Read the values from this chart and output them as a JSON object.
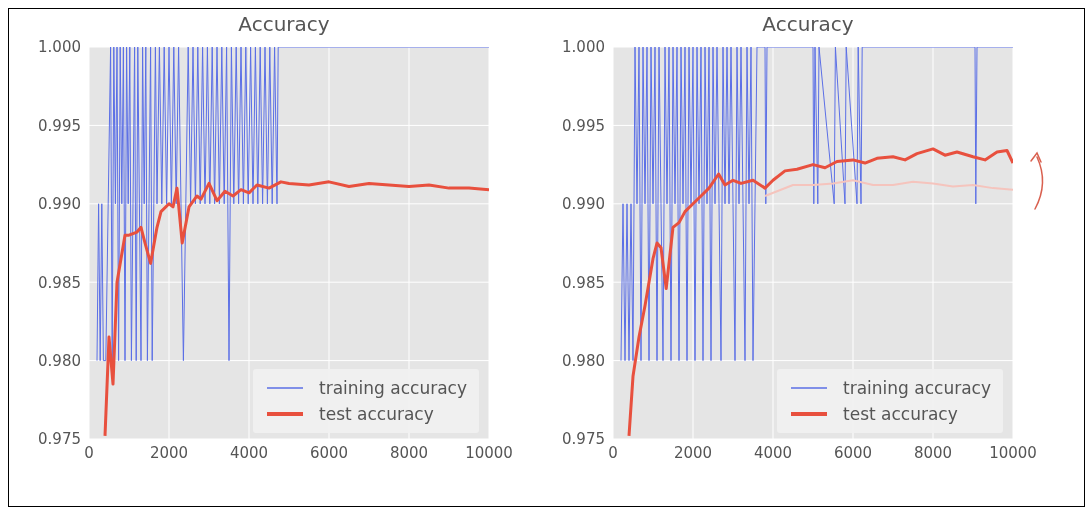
{
  "chart_data": [
    {
      "type": "line",
      "title": "Accuracy",
      "xlim": [
        0,
        10000
      ],
      "xticks": [
        0,
        2000,
        4000,
        6000,
        8000,
        10000
      ],
      "ylim": [
        0.975,
        1.0
      ],
      "yticks": [
        {
          "value": 0.975,
          "label": "0.975"
        },
        {
          "value": 0.98,
          "label": "0.980"
        },
        {
          "value": 0.985,
          "label": "0.985"
        },
        {
          "value": 0.99,
          "label": "0.990"
        },
        {
          "value": 0.995,
          "label": "0.995"
        },
        {
          "value": 1.0,
          "label": "1.000"
        }
      ],
      "grid": true,
      "legend": "bottom right",
      "marker": "none",
      "line_style": "solid",
      "series": [
        {
          "name": "training accuracy",
          "color": "#5b6fe6",
          "x": [
            200,
            240,
            280,
            320,
            360,
            420,
            480,
            540,
            580,
            620,
            660,
            700,
            740,
            780,
            820,
            860,
            900,
            940,
            980,
            1020,
            1060,
            1100,
            1140,
            1180,
            1220,
            1260,
            1300,
            1340,
            1380,
            1420,
            1460,
            1500,
            1540,
            1580,
            1620,
            1660,
            1700,
            1760,
            1820,
            1880,
            1940,
            2000,
            2060,
            2120,
            2180,
            2240,
            2300,
            2360,
            2420,
            2480,
            2540,
            2600,
            2660,
            2720,
            2780,
            2840,
            2900,
            2960,
            3020,
            3080,
            3140,
            3200,
            3260,
            3320,
            3380,
            3440,
            3500,
            3560,
            3620,
            3680,
            3740,
            3800,
            3860,
            3920,
            3980,
            4040,
            4100,
            4160,
            4220,
            4280,
            4340,
            4400,
            4460,
            4520,
            4580,
            4640,
            4700,
            4730,
            10000
          ],
          "values": [
            0.98,
            0.99,
            0.98,
            0.99,
            0.98,
            0.98,
            0.99,
            1.0,
            0.98,
            1.0,
            0.99,
            1.0,
            0.98,
            1.0,
            0.99,
            1.0,
            0.98,
            1.0,
            0.99,
            1.0,
            0.98,
            0.99,
            1.0,
            0.98,
            1.0,
            0.99,
            0.98,
            1.0,
            0.99,
            1.0,
            0.98,
            0.99,
            1.0,
            0.98,
            0.99,
            1.0,
            0.99,
            1.0,
            0.99,
            1.0,
            0.99,
            1.0,
            0.99,
            1.0,
            0.99,
            1.0,
            0.99,
            0.98,
            0.99,
            1.0,
            0.99,
            1.0,
            0.99,
            1.0,
            0.99,
            1.0,
            0.99,
            1.0,
            0.99,
            1.0,
            0.99,
            1.0,
            0.99,
            1.0,
            0.99,
            1.0,
            0.98,
            1.0,
            0.99,
            1.0,
            0.99,
            1.0,
            0.99,
            1.0,
            0.99,
            1.0,
            0.99,
            1.0,
            0.99,
            1.0,
            0.99,
            1.0,
            0.99,
            1.0,
            0.99,
            1.0,
            0.99,
            1.0,
            1.0
          ]
        },
        {
          "name": "test accuracy",
          "color": "#e8503e",
          "x": [
            400,
            500,
            600,
            700,
            800,
            900,
            1000,
            1200,
            1300,
            1400,
            1540,
            1700,
            1800,
            2000,
            2100,
            2200,
            2330,
            2500,
            2700,
            2800,
            3000,
            3200,
            3400,
            3600,
            3800,
            4000,
            4200,
            4500,
            4800,
            5000,
            5500,
            6000,
            6500,
            7000,
            7500,
            8000,
            8500,
            9000,
            9500,
            10000
          ],
          "values": [
            0.9752,
            0.9815,
            0.9785,
            0.985,
            0.9865,
            0.988,
            0.988,
            0.9882,
            0.9885,
            0.9875,
            0.9862,
            0.9885,
            0.9895,
            0.99,
            0.9898,
            0.991,
            0.9875,
            0.9898,
            0.9905,
            0.9903,
            0.9913,
            0.9902,
            0.9908,
            0.9905,
            0.9909,
            0.9907,
            0.9912,
            0.991,
            0.9914,
            0.9913,
            0.9912,
            0.9914,
            0.9911,
            0.9913,
            0.9912,
            0.9911,
            0.9912,
            0.991,
            0.991,
            0.9909
          ]
        }
      ]
    },
    {
      "type": "line",
      "title": "Accuracy",
      "xlim": [
        0,
        10000
      ],
      "xticks": [
        0,
        2000,
        4000,
        6000,
        8000,
        10000
      ],
      "ylim": [
        0.975,
        1.0
      ],
      "yticks": [
        {
          "value": 0.975,
          "label": "0.975"
        },
        {
          "value": 0.98,
          "label": "0.980"
        },
        {
          "value": 0.985,
          "label": "0.985"
        },
        {
          "value": 0.99,
          "label": "0.990"
        },
        {
          "value": 0.995,
          "label": "0.995"
        },
        {
          "value": 1.0,
          "label": "1.000"
        }
      ],
      "grid": true,
      "legend": "bottom right",
      "marker": "none",
      "line_style": "solid",
      "series": [
        {
          "name": "training accuracy",
          "color": "#5b6fe6",
          "x": [
            200,
            250,
            300,
            350,
            400,
            450,
            500,
            550,
            600,
            650,
            700,
            750,
            800,
            850,
            900,
            950,
            1000,
            1050,
            1100,
            1150,
            1200,
            1250,
            1300,
            1350,
            1400,
            1450,
            1500,
            1550,
            1600,
            1650,
            1700,
            1750,
            1800,
            1850,
            1900,
            1950,
            2000,
            2050,
            2100,
            2150,
            2200,
            2250,
            2300,
            2350,
            2400,
            2450,
            2500,
            2550,
            2600,
            2650,
            2700,
            2750,
            2800,
            2850,
            2900,
            2950,
            3000,
            3050,
            3100,
            3150,
            3200,
            3250,
            3300,
            3350,
            3400,
            3450,
            3500,
            3550,
            3600,
            3650,
            3800,
            3820,
            3850,
            5000,
            5020,
            5050,
            5120,
            5150,
            5530,
            5560,
            5800,
            5830,
            6100,
            6130,
            6200,
            6230,
            9050,
            9070,
            9100,
            10000
          ],
          "values": [
            0.98,
            0.99,
            0.98,
            0.99,
            0.98,
            0.99,
            0.98,
            1.0,
            0.99,
            1.0,
            0.98,
            1.0,
            0.99,
            1.0,
            0.98,
            1.0,
            0.99,
            1.0,
            0.98,
            1.0,
            0.99,
            0.98,
            1.0,
            0.99,
            1.0,
            0.98,
            1.0,
            0.99,
            1.0,
            0.98,
            1.0,
            0.99,
            1.0,
            0.98,
            1.0,
            0.99,
            1.0,
            0.98,
            1.0,
            0.99,
            1.0,
            0.98,
            1.0,
            0.99,
            1.0,
            0.98,
            1.0,
            0.99,
            1.0,
            0.99,
            0.98,
            1.0,
            0.99,
            1.0,
            0.99,
            1.0,
            0.99,
            0.98,
            1.0,
            0.99,
            1.0,
            0.99,
            0.98,
            1.0,
            0.99,
            1.0,
            0.98,
            0.99,
            1.0,
            1.0,
            1.0,
            0.99,
            1.0,
            1.0,
            0.99,
            1.0,
            0.99,
            1.0,
            0.99,
            1.0,
            0.99,
            1.0,
            0.99,
            1.0,
            0.99,
            1.0,
            1.0,
            0.99,
            1.0,
            1.0
          ]
        },
        {
          "color": "#f5c4bd",
          "x": [
            3800,
            4500,
            5000,
            5500,
            6000,
            6500,
            7000,
            7500,
            8000,
            8500,
            9000,
            9500,
            10000
          ],
          "values": [
            0.9905,
            0.9912,
            0.9912,
            0.9913,
            0.9915,
            0.9912,
            0.9912,
            0.9914,
            0.9913,
            0.9911,
            0.9912,
            0.991,
            0.9909
          ]
        },
        {
          "name": "test accuracy",
          "color": "#e8503e",
          "x": [
            400,
            500,
            650,
            800,
            1000,
            1100,
            1200,
            1330,
            1500,
            1650,
            1800,
            2000,
            2200,
            2400,
            2640,
            2800,
            3000,
            3200,
            3500,
            3800,
            4000,
            4300,
            4600,
            5000,
            5300,
            5600,
            6000,
            6300,
            6600,
            7000,
            7300,
            7600,
            8000,
            8300,
            8600,
            9000,
            9300,
            9600,
            9850,
            10000
          ],
          "values": [
            0.9752,
            0.979,
            0.9815,
            0.9835,
            0.9865,
            0.9875,
            0.9872,
            0.9846,
            0.9885,
            0.9888,
            0.9895,
            0.99,
            0.9905,
            0.991,
            0.9919,
            0.9912,
            0.9915,
            0.9913,
            0.9915,
            0.991,
            0.9915,
            0.9921,
            0.9922,
            0.9925,
            0.9923,
            0.9927,
            0.9928,
            0.9926,
            0.9929,
            0.993,
            0.9928,
            0.9932,
            0.9935,
            0.9931,
            0.9933,
            0.993,
            0.9928,
            0.9933,
            0.9934,
            0.9926
          ]
        }
      ]
    }
  ]
}
